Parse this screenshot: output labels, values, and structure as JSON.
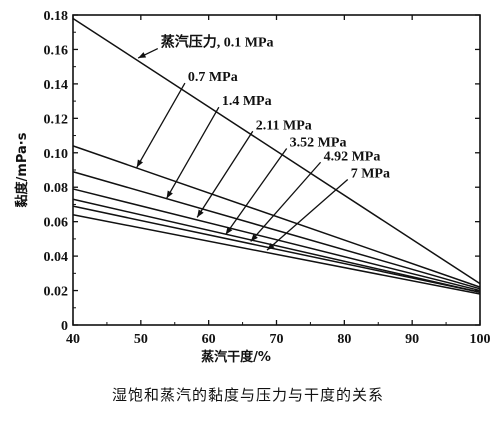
{
  "chart_data": {
    "type": "line",
    "xlabel": "蒸汽干度/%",
    "ylabel": "黏度/mPa·s",
    "xlim": [
      40,
      100
    ],
    "ylim": [
      0,
      0.18
    ],
    "xticks": [
      40,
      50,
      60,
      70,
      80,
      90,
      100
    ],
    "xtick_labels": [
      "40",
      "50",
      "60",
      "70",
      "80",
      "90",
      "100"
    ],
    "yticks": [
      0,
      0.02,
      0.04,
      0.06,
      0.08,
      0.1,
      0.12,
      0.14,
      0.16,
      0.18
    ],
    "ytick_labels": [
      "0",
      "0.02",
      "0.04",
      "0.06",
      "0.08",
      "0.10",
      "0.12",
      "0.14",
      "0.16",
      "0.18"
    ],
    "grid": false,
    "series": [
      {
        "name": "蒸汽压力, 0.1 MPa",
        "x": [
          40,
          100
        ],
        "y": [
          0.178,
          0.024
        ]
      },
      {
        "name": "0.7 MPa",
        "x": [
          40,
          100
        ],
        "y": [
          0.104,
          0.022
        ]
      },
      {
        "name": "1.4 MPa",
        "x": [
          40,
          100
        ],
        "y": [
          0.089,
          0.021
        ]
      },
      {
        "name": "2.11 MPa",
        "x": [
          40,
          100
        ],
        "y": [
          0.079,
          0.02
        ]
      },
      {
        "name": "3.52 MPa",
        "x": [
          40,
          100
        ],
        "y": [
          0.073,
          0.019
        ]
      },
      {
        "name": "4.92 MPa",
        "x": [
          40,
          100
        ],
        "y": [
          0.069,
          0.019
        ]
      },
      {
        "name": "7 MPa",
        "x": [
          40,
          100
        ],
        "y": [
          0.064,
          0.018
        ]
      }
    ]
  },
  "caption": "湿饱和蒸汽的黏度与压力与干度的关系"
}
